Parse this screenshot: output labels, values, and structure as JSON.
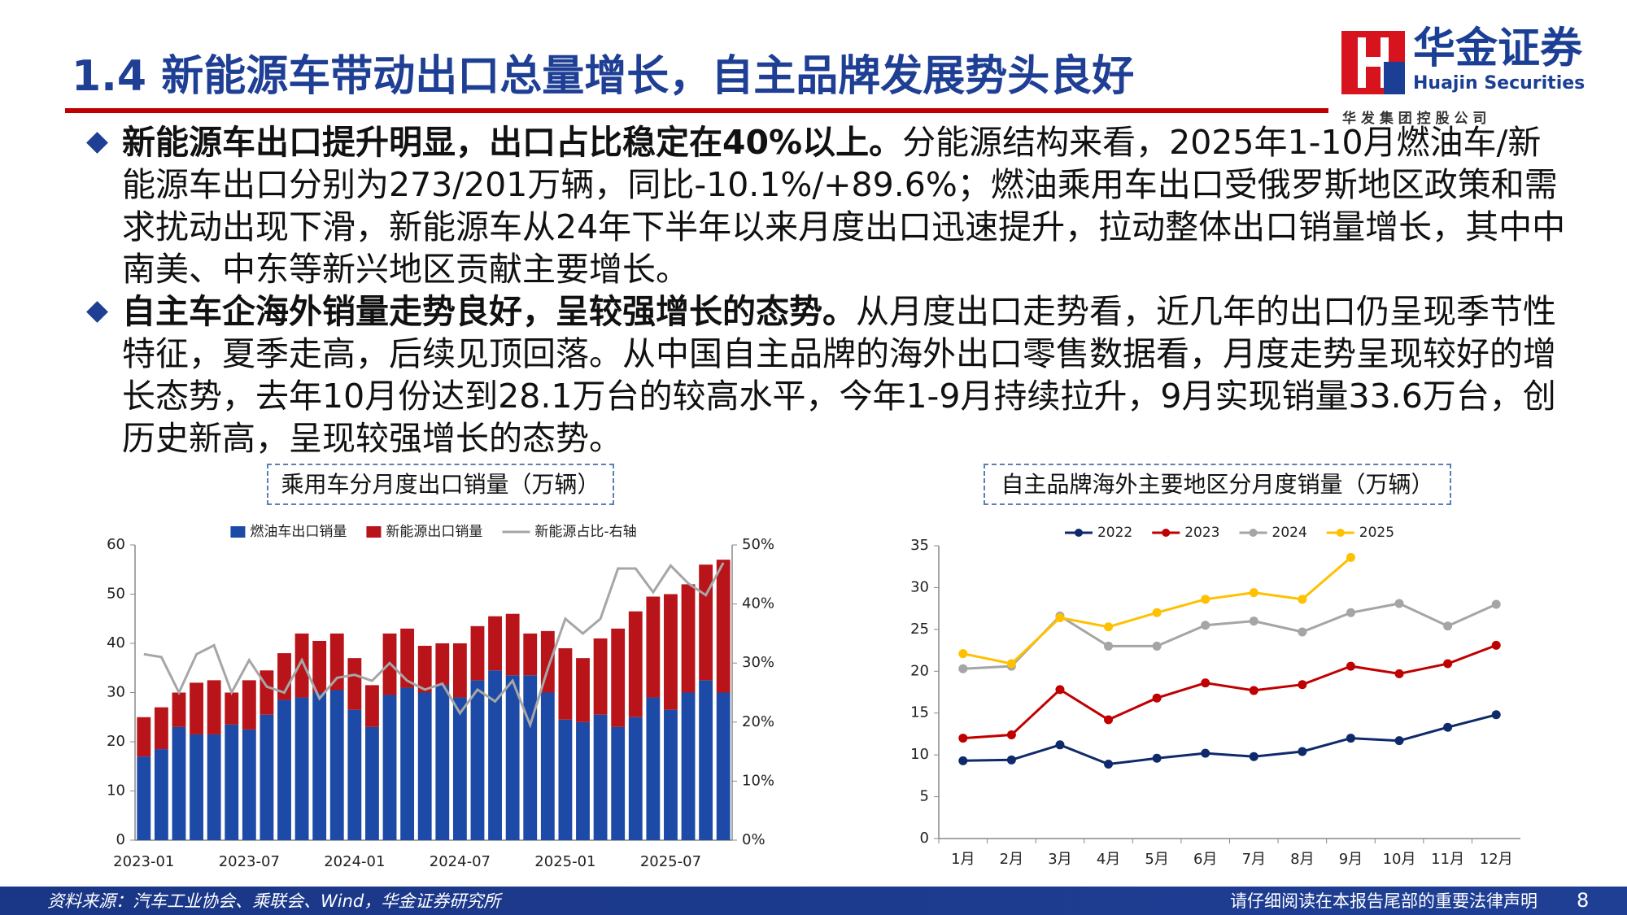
{
  "header": {
    "title": "1.4 新能源车带动出口总量增长，自主品牌发展势头良好",
    "logo": {
      "name": "华金证券",
      "english": "Huajin Securities",
      "parent": "华 发 集 团 控 股 公 司"
    }
  },
  "bullets": [
    {
      "lead": "新能源车出口提升明显，出口占比稳定在40%以上。",
      "text": "分能源结构来看，2025年1-10月燃油车/新能源车出口分别为273/201万辆，同比-10.1%/+89.6%；燃油乘用车出口受俄罗斯地区政策和需求扰动出现下滑，新能源车从24年下半年以来月度出口迅速提升，拉动整体出口销量增长，其中中南美、中东等新兴地区贡献主要增长。"
    },
    {
      "lead": "自主车企海外销量走势良好，呈较强增长的态势。",
      "text": "从月度出口走势看，近几年的出口仍呈现季节性特征，夏季走高，后续见顶回落。从中国自主品牌的海外出口零售数据看，月度走势呈现较好的增长态势，去年10月份达到28.1万台的较高水平，今年1-9月持续拉升，9月实现销量33.6万台，创历史新高，呈现较强增长的态势。"
    }
  ],
  "chart_data": [
    {
      "type": "bar",
      "title": "乘用车分月度出口销量（万辆）",
      "categories": [
        "2023-01",
        null,
        null,
        null,
        null,
        null,
        "2023-07",
        null,
        null,
        null,
        null,
        null,
        "2024-01",
        null,
        null,
        null,
        null,
        null,
        "2024-07",
        null,
        null,
        null,
        null,
        null,
        "2025-01",
        null,
        null,
        null,
        null,
        null,
        "2025-07",
        null,
        null,
        null
      ],
      "series": [
        {
          "name": "燃油车出口销量",
          "color": "#1c4aa6",
          "type": "bar",
          "values": [
            17,
            18.5,
            23,
            21.5,
            21.5,
            23.5,
            22.5,
            25.5,
            28.5,
            29,
            30,
            30.5,
            26.5,
            23,
            29.5,
            31,
            30,
            31.5,
            29,
            32.5,
            34.5,
            33.5,
            33.5,
            30,
            24.5,
            24,
            25.5,
            23,
            25,
            29,
            26.5,
            30,
            32.5,
            30
          ]
        },
        {
          "name": "新能源出口销量",
          "color": "#b81419",
          "type": "bar",
          "values": [
            8,
            8.5,
            7,
            10.5,
            11,
            6.5,
            10,
            9,
            9.5,
            13,
            10.5,
            11.5,
            10.5,
            8.5,
            12.5,
            12,
            9.5,
            8.5,
            11,
            11,
            11,
            12.5,
            8.5,
            12.5,
            14.5,
            13,
            15.5,
            20,
            21.5,
            20.5,
            23.5,
            22,
            23.5,
            27
          ]
        },
        {
          "name": "新能源占比-右轴",
          "color": "#a6a6a6",
          "type": "line",
          "axis": "y2",
          "values": [
            31.5,
            31,
            25,
            31.5,
            33,
            25,
            30.5,
            26,
            25,
            30.5,
            24,
            27.5,
            28,
            27,
            30,
            27,
            25.5,
            26.5,
            21.5,
            25.5,
            23.5,
            27,
            19.5,
            29,
            37.5,
            35,
            37.5,
            46,
            46,
            42,
            46.5,
            43.5,
            41.5,
            47
          ]
        }
      ],
      "ylim": [
        0,
        60
      ],
      "yticks": [
        0,
        10,
        20,
        30,
        40,
        50,
        60
      ],
      "y2lim": [
        0,
        50
      ],
      "y2ticks": [
        {
          "value": 0,
          "label": "0%"
        },
        {
          "value": 10,
          "label": "10%"
        },
        {
          "value": 20,
          "label": "20%"
        },
        {
          "value": 30,
          "label": "30%"
        },
        {
          "value": 40,
          "label": "40%"
        },
        {
          "value": 50,
          "label": "50%"
        }
      ],
      "grid": false,
      "legend": "top",
      "markers": false
    },
    {
      "type": "line",
      "title": "自主品牌海外主要地区分月度销量（万辆）",
      "categories": [
        "1月",
        "2月",
        "3月",
        "4月",
        "5月",
        "6月",
        "7月",
        "8月",
        "9月",
        "10月",
        "11月",
        "12月"
      ],
      "series": [
        {
          "name": "2022",
          "color": "#0f2a6b",
          "values": [
            9.3,
            9.4,
            11.2,
            8.9,
            9.6,
            10.2,
            9.8,
            10.4,
            12,
            11.7,
            13.3,
            14.8
          ]
        },
        {
          "name": "2023",
          "color": "#c00000",
          "values": [
            12,
            12.4,
            17.8,
            14.2,
            16.8,
            18.6,
            17.7,
            18.4,
            20.6,
            19.7,
            20.9,
            23.1
          ]
        },
        {
          "name": "2024",
          "color": "#a5a5a5",
          "values": [
            20.3,
            20.6,
            26.6,
            23,
            23,
            25.5,
            26,
            24.7,
            27,
            28.1,
            25.4,
            28
          ]
        },
        {
          "name": "2025",
          "color": "#ffc000",
          "values": [
            22.1,
            20.9,
            26.4,
            25.3,
            27,
            28.6,
            29.4,
            28.6,
            33.6,
            null,
            null,
            null
          ]
        }
      ],
      "ylim": [
        0,
        35
      ],
      "yticks": [
        0,
        5,
        10,
        15,
        20,
        25,
        30,
        35
      ],
      "grid": false,
      "legend": "top",
      "markers": true
    }
  ],
  "footer": {
    "source": "资料来源：汽车工业协会、乘联会、Wind，华金证券研究所",
    "notice": "请仔细阅读在本报告尾部的重要法律声明",
    "page": 8
  }
}
